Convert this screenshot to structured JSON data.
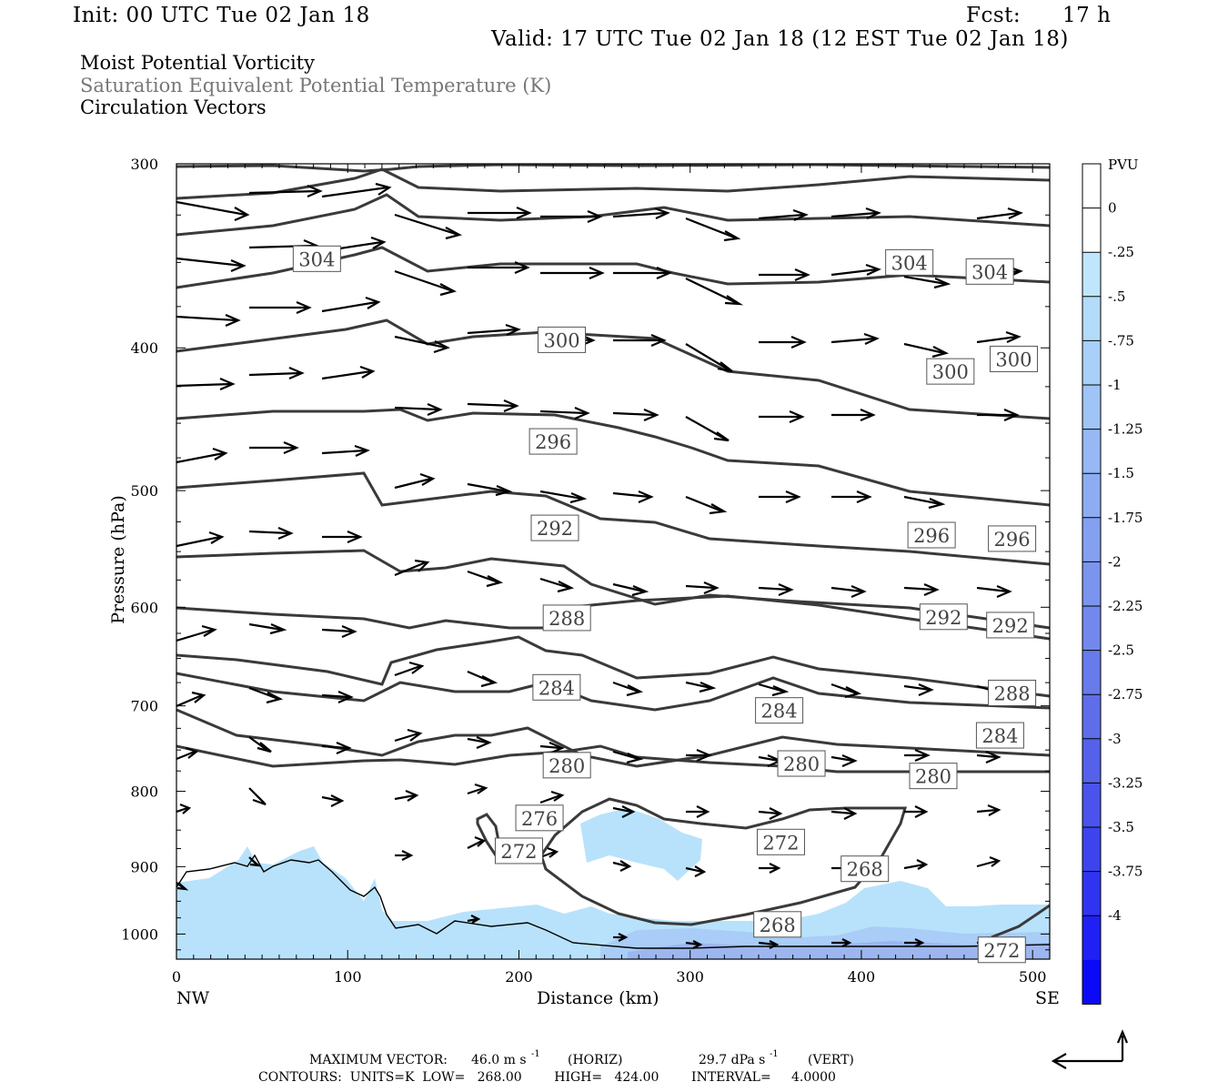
{
  "header": {
    "init": "Init: 00 UTC Tue 02 Jan 18",
    "fcst_label": "Fcst:",
    "fcst_value": "17 h",
    "valid": "Valid: 17 UTC Tue 02 Jan 18 (12 EST Tue 02 Jan 18)",
    "field1": "Moist Potential Vorticity",
    "field2": "Saturation Equivalent Potential Temperature (K)",
    "field3": "Circulation Vectors"
  },
  "footer": {
    "max_vector_label": "MAXIMUM VECTOR:",
    "max_vector_horiz": "46.0 m s",
    "horiz_tag": "(HORIZ)",
    "max_vector_vert": "29.7 dPa s",
    "vert_tag": "(VERT)",
    "exp": "-1",
    "contours": "CONTOURS:  UNITS=K  LOW=   268.00        HIGH=   424.00        INTERVAL=     4.0000"
  },
  "colors": {
    "contour": "#3a3a3a",
    "vector": "#000000",
    "pv_light": "#b8e2fb",
    "pv_mid": "#9fc8f3"
  },
  "chart_data": {
    "type": "cross-section",
    "xlabel": "Distance (km)",
    "ylabel": "Pressure (hPa)",
    "xlim": [
      0,
      510
    ],
    "ylim": [
      1040,
      300
    ],
    "y_scale": "log",
    "x_ticks": [
      0,
      100,
      200,
      300,
      400,
      500
    ],
    "y_ticks": [
      300,
      400,
      500,
      600,
      700,
      800,
      900,
      1000
    ],
    "x_end_labels": {
      "left": "NW",
      "right": "SE"
    },
    "colorbar": {
      "unit": "PVU",
      "labels": [
        "0",
        "-.25",
        "-.5",
        "-.75",
        "-1",
        "-1.25",
        "-1.5",
        "-1.75",
        "-2",
        "-2.25",
        "-2.5",
        "-2.75",
        "-3",
        "-3.25",
        "-3.5",
        "-3.75",
        "-4"
      ],
      "colors": [
        "#ffffff",
        "#ffffff",
        "#bfe6fd",
        "#b3dbfa",
        "#a8d0f8",
        "#9fc4f6",
        "#96b8f4",
        "#8dacf2",
        "#84a0f0",
        "#7b94ee",
        "#7288ec",
        "#687bea",
        "#5e6eea",
        "#5461ea",
        "#4a53ec",
        "#3d44ee",
        "#2f34f0",
        "#1f20f3",
        "#0a0af7"
      ]
    },
    "contour_labels": [
      {
        "text": "304",
        "x": 82,
        "p": 348
      },
      {
        "text": "304",
        "x": 428,
        "p": 350
      },
      {
        "text": "304",
        "x": 475,
        "p": 355
      },
      {
        "text": "300",
        "x": 225,
        "p": 395
      },
      {
        "text": "300",
        "x": 452,
        "p": 415
      },
      {
        "text": "300",
        "x": 489,
        "p": 407
      },
      {
        "text": "296",
        "x": 220,
        "p": 463
      },
      {
        "text": "296",
        "x": 441,
        "p": 536
      },
      {
        "text": "296",
        "x": 488,
        "p": 539
      },
      {
        "text": "292",
        "x": 221,
        "p": 530
      },
      {
        "text": "292",
        "x": 448,
        "p": 609
      },
      {
        "text": "292",
        "x": 487,
        "p": 617
      },
      {
        "text": "288",
        "x": 228,
        "p": 610
      },
      {
        "text": "288",
        "x": 488,
        "p": 686
      },
      {
        "text": "284",
        "x": 222,
        "p": 680
      },
      {
        "text": "284",
        "x": 352,
        "p": 705
      },
      {
        "text": "284",
        "x": 481,
        "p": 733
      },
      {
        "text": "280",
        "x": 228,
        "p": 768
      },
      {
        "text": "280",
        "x": 365,
        "p": 766
      },
      {
        "text": "280",
        "x": 442,
        "p": 781
      },
      {
        "text": "276",
        "x": 212,
        "p": 834
      },
      {
        "text": "272",
        "x": 200,
        "p": 878
      },
      {
        "text": "272",
        "x": 353,
        "p": 866
      },
      {
        "text": "272",
        "x": 482,
        "p": 1025
      },
      {
        "text": "268",
        "x": 402,
        "p": 903
      },
      {
        "text": "268",
        "x": 351,
        "p": 985
      }
    ]
  }
}
